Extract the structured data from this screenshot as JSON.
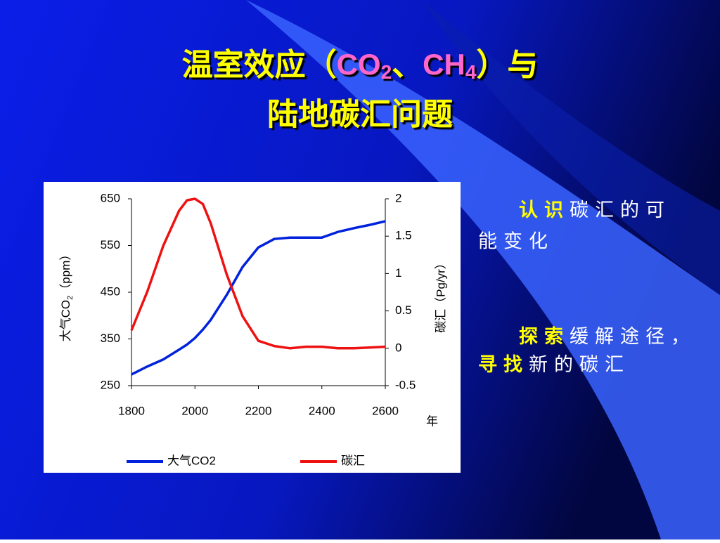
{
  "title": {
    "part1": "温室效应（",
    "co": "CO",
    "co_sub": "2",
    "sep": "、",
    "ch": "CH",
    "ch_sub": "4",
    "part2": "）与",
    "line2": "陆地碳汇问题"
  },
  "points": [
    {
      "highlight": "认识",
      "line1": "碳汇的可",
      "line2": "能变化"
    },
    {
      "highlight": "探索",
      "line1": "缓解途径，",
      "highlight2": "寻找",
      "line2": "新的碳汇"
    }
  ],
  "chart_data": {
    "type": "line",
    "x": [
      1800,
      1850,
      1900,
      1950,
      1975,
      2000,
      2025,
      2050,
      2100,
      2150,
      2200,
      2250,
      2300,
      2350,
      2400,
      2450,
      2500,
      2550,
      2600
    ],
    "xlim": [
      1800,
      2600
    ],
    "xticks": [
      1800,
      2000,
      2200,
      2400,
      2600
    ],
    "x_label": "年",
    "y_label": {
      "main": "大气CO",
      "sub": "2",
      "unit": "（ppm）"
    },
    "y2_label": "碳汇（Pg/yr）",
    "ylim": [
      250,
      650
    ],
    "yticks": [
      250,
      350,
      450,
      550,
      650
    ],
    "y2lim": [
      -0.5,
      2
    ],
    "y2ticks": [
      -0.5,
      0,
      0.5,
      1,
      1.5,
      2
    ],
    "series": [
      {
        "name": "大气CO2",
        "color": "#0022dd",
        "values": [
          274,
          291,
          306,
          327,
          338,
          352,
          370,
          391,
          444,
          504,
          546,
          564,
          567,
          567,
          567,
          579,
          587,
          594,
          602
        ]
      },
      {
        "name": "碳汇",
        "color": "#ee1111",
        "axis": "y2",
        "values": [
          0.24,
          0.76,
          1.37,
          1.84,
          1.98,
          2.0,
          1.93,
          1.67,
          0.99,
          0.43,
          0.1,
          0.03,
          0.0,
          0.02,
          0.02,
          0.0,
          0.0,
          0.01,
          0.02
        ]
      }
    ]
  }
}
